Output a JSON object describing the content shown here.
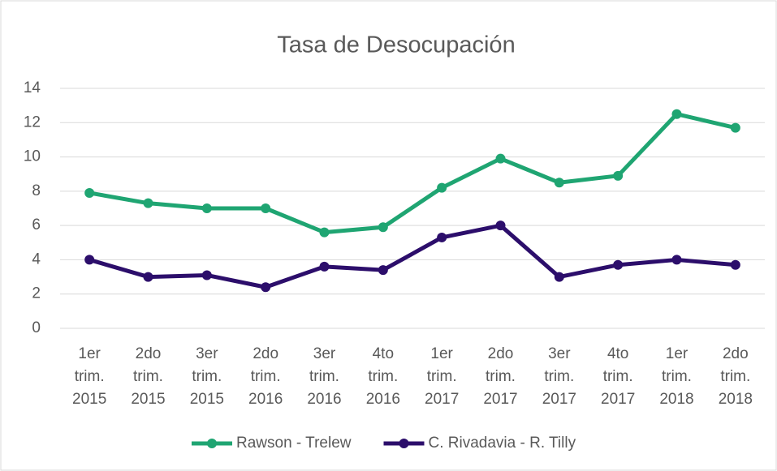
{
  "chart_data": {
    "type": "line",
    "title": "Tasa de Desocupación",
    "categories": [
      [
        "1er",
        "trim.",
        "2015"
      ],
      [
        "2do",
        "trim.",
        "2015"
      ],
      [
        "3er",
        "trim.",
        "2015"
      ],
      [
        "2do",
        "trim.",
        "2016"
      ],
      [
        "3er",
        "trim.",
        "2016"
      ],
      [
        "4to",
        "trim.",
        "2016"
      ],
      [
        "1er",
        "trim.",
        "2017"
      ],
      [
        "2do",
        "trim.",
        "2017"
      ],
      [
        "3er",
        "trim.",
        "2017"
      ],
      [
        "4to",
        "trim.",
        "2017"
      ],
      [
        "1er",
        "trim.",
        "2018"
      ],
      [
        "2do",
        "trim.",
        "2018"
      ]
    ],
    "series": [
      {
        "name": "Rawson - Trelew",
        "color": "#1fa572",
        "values": [
          7.9,
          7.3,
          7.0,
          7.0,
          5.6,
          5.9,
          8.2,
          9.9,
          8.5,
          8.9,
          12.5,
          11.7
        ]
      },
      {
        "name": "C. Rivadavia - R. Tilly",
        "color": "#2c0e6b",
        "values": [
          4.0,
          3.0,
          3.1,
          2.4,
          3.6,
          3.4,
          5.3,
          6.0,
          3.0,
          3.7,
          4.0,
          3.7
        ]
      }
    ],
    "ylim": [
      0,
      14
    ],
    "yticks": [
      0,
      2,
      4,
      6,
      8,
      10,
      12,
      14
    ],
    "grid": true,
    "legend": "bottom"
  }
}
